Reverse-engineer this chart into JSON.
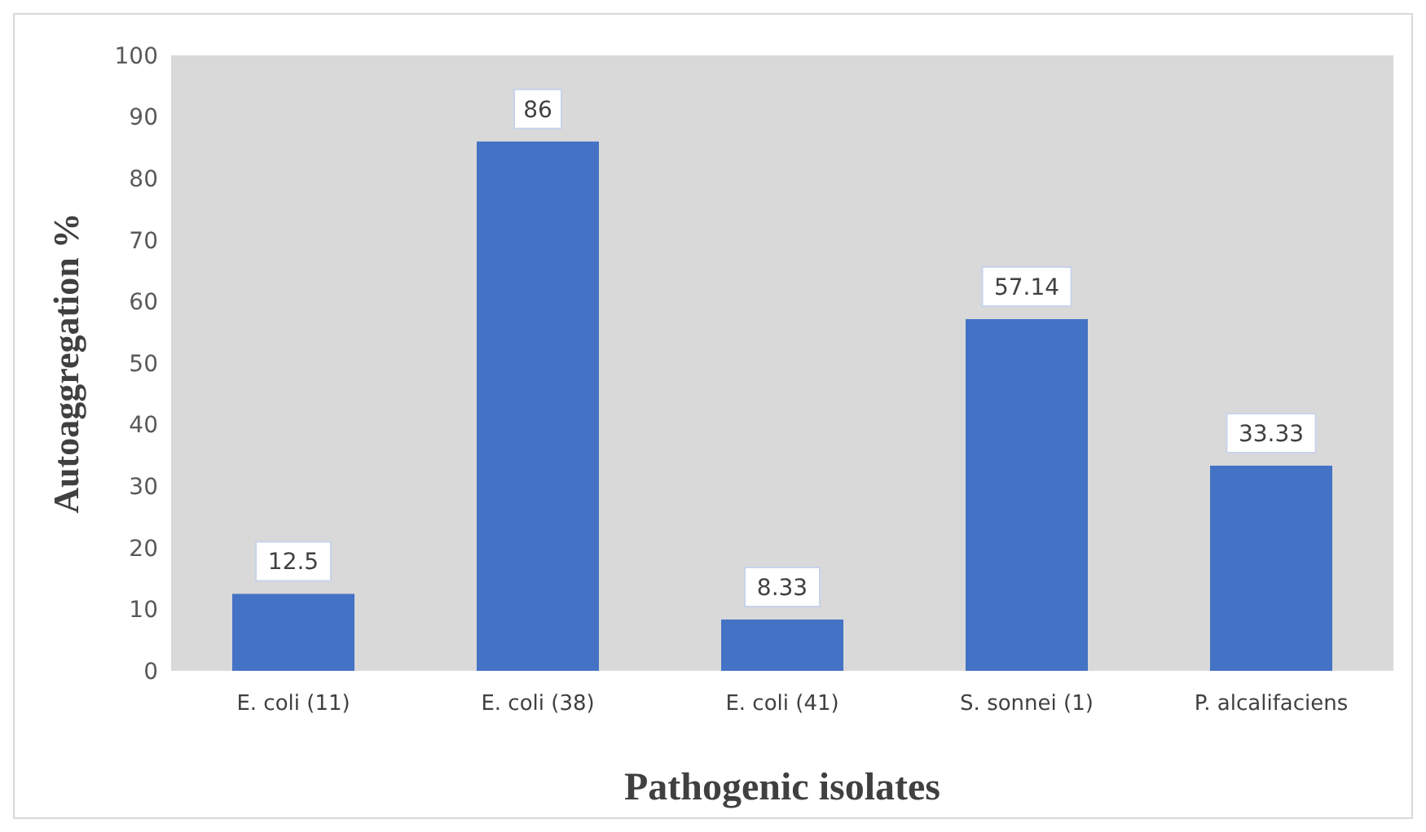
{
  "chart_data": {
    "type": "bar",
    "xlabel": "Pathogenic isolates",
    "ylabel": "Autoaggregation %",
    "categories": [
      "E. coli (11)",
      "E. coli (38)",
      "E. coli (41)",
      "S. sonnei (1)",
      "P. alcalifaciens"
    ],
    "values": [
      12.5,
      86,
      8.33,
      57.14,
      33.33
    ],
    "color": "#4472c4",
    "ylim": [
      0,
      100
    ],
    "yticks": [
      0,
      10,
      20,
      30,
      40,
      50,
      60,
      70,
      80,
      90,
      100
    ],
    "grid": false,
    "data_labels": true
  }
}
